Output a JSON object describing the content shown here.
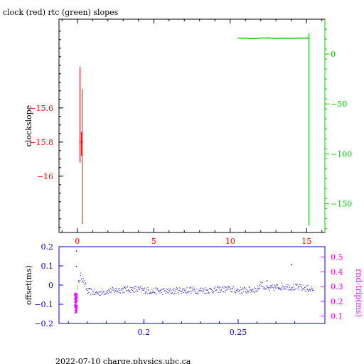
{
  "title": "clock (red) rtc (green) slopes",
  "footer": "2022-07-10 charge.physics.ubc.ca",
  "colors": {
    "clock": "#ff0000",
    "rtc": "#00cc00",
    "offset": "#0000cc",
    "rndtrip": "#ff00ff",
    "axis": "#000000"
  },
  "chart_data": [
    {
      "type": "line",
      "title": "clock (red) rtc (green) slopes",
      "ylabel_left": "clockslope",
      "xlim": [
        -1.2,
        16.2
      ],
      "ylim_left": [
        -16.33,
        -15.08
      ],
      "ylim_right": [
        -179,
        35
      ],
      "x_ticks": [
        0,
        5,
        10,
        15
      ],
      "y_ticks_left": [
        -15.6,
        -15.8,
        -16
      ],
      "y_ticks_right": [
        0,
        -50,
        -100,
        -150
      ],
      "series": [
        {
          "name": "clock (red)",
          "axis": "left",
          "color": "#ff0000",
          "segments": [
            [
              [
                0.17,
                -15.36
              ],
              [
                0.17,
                -15.92
              ]
            ],
            [
              [
                0.32,
                -15.49
              ],
              [
                0.32,
                -16.28
              ]
            ],
            [
              [
                0.27,
                -15.74
              ],
              [
                0.27,
                -15.88
              ]
            ],
            [
              [
                0.12,
                -15.8
              ],
              [
                0.37,
                -15.8
              ]
            ]
          ]
        },
        {
          "name": "rtc (green)",
          "axis": "right",
          "color": "#00cc00",
          "x": [
            10.5,
            11.0,
            11.5,
            12.0,
            12.5,
            13.0,
            13.5,
            14.0,
            14.5,
            15.0,
            15.2
          ],
          "y": [
            16,
            16,
            15.5,
            16,
            16.2,
            15.7,
            16,
            15.8,
            16,
            16.1,
            16
          ],
          "drop": [
            [
              15.15,
              21
            ],
            [
              15.15,
              -172
            ]
          ]
        }
      ]
    },
    {
      "type": "scatter",
      "ylabel_left": "offset(ms)",
      "ylabel_right": "rnd-trip(ms)",
      "xlim": [
        0.155,
        0.296
      ],
      "ylim_left": [
        -0.2,
        0.2
      ],
      "ylim_right": [
        0.05,
        0.57
      ],
      "x_ticks": [
        0.2,
        0.25
      ],
      "y_ticks_left": [
        0.2,
        0.1,
        0,
        -0.1,
        -0.2
      ],
      "y_ticks_right": [
        0.5,
        0.4,
        0.3,
        0.2,
        0.1
      ],
      "offset_trend": {
        "x": [
          0.163,
          0.164,
          0.165,
          0.1665,
          0.168,
          0.17,
          0.175,
          0.18,
          0.185,
          0.19,
          0.195,
          0.2,
          0.205,
          0.21,
          0.215,
          0.22,
          0.225,
          0.23,
          0.235,
          0.24,
          0.245,
          0.25,
          0.255,
          0.26,
          0.262,
          0.265,
          0.27,
          0.275,
          0.28,
          0.285,
          0.29
        ],
        "y": [
          -0.13,
          -0.06,
          0.01,
          0.05,
          0.02,
          -0.03,
          -0.04,
          -0.03,
          -0.025,
          -0.02,
          -0.02,
          -0.025,
          -0.03,
          -0.03,
          -0.03,
          -0.025,
          -0.025,
          -0.025,
          -0.025,
          -0.02,
          -0.02,
          -0.025,
          -0.025,
          -0.02,
          0.01,
          -0.02,
          -0.01,
          -0.005,
          -0.01,
          -0.015,
          -0.02
        ]
      },
      "offset_outliers": [
        [
          0.164,
          0.18
        ],
        [
          0.164,
          0.1
        ],
        [
          0.278,
          0.11
        ],
        [
          0.265,
          0.025
        ]
      ],
      "rndtrip_cluster": {
        "x": 0.1635,
        "y_range": [
          0.13,
          0.26
        ]
      }
    }
  ]
}
